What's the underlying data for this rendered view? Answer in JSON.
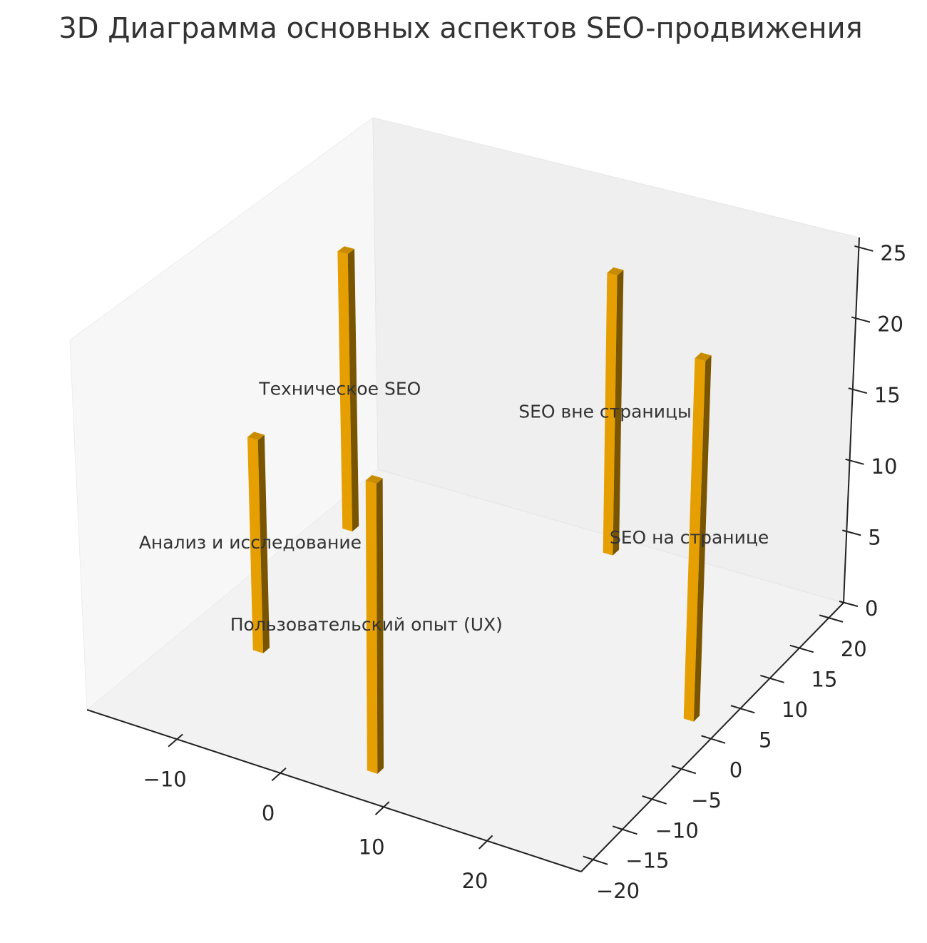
{
  "chart_data": {
    "type": "bar3d",
    "title": "3D Диаграмма основных аспектов SEO-продвижения",
    "categories": [
      "Анализ и исследование",
      "Техническое SEO",
      "Пользовательский опыт (UX)",
      "SEO вне страницы",
      "SEO на странице"
    ],
    "x": [
      -12,
      -16,
      6,
      6,
      25.5
    ],
    "y": [
      -7,
      13,
      -18,
      20,
      1.5
    ],
    "values": [
      15,
      20,
      20,
      20,
      25
    ],
    "color": "#e69f00",
    "xlim": [
      -18.7,
      29.1
    ],
    "ylim": [
      -22,
      22.5
    ],
    "zlim": [
      0,
      25.7
    ],
    "xticks": [
      {
        "value": -10,
        "label": "−10"
      },
      0,
      10,
      20
    ],
    "yticks": [
      {
        "value": -20,
        "label": "−20"
      },
      {
        "value": -15,
        "label": "−15"
      },
      {
        "value": -10,
        "label": "−10"
      },
      {
        "value": -5,
        "label": "−5"
      },
      0,
      5,
      10,
      15,
      20
    ],
    "zticks": [
      0,
      5,
      10,
      15,
      20,
      25
    ]
  }
}
